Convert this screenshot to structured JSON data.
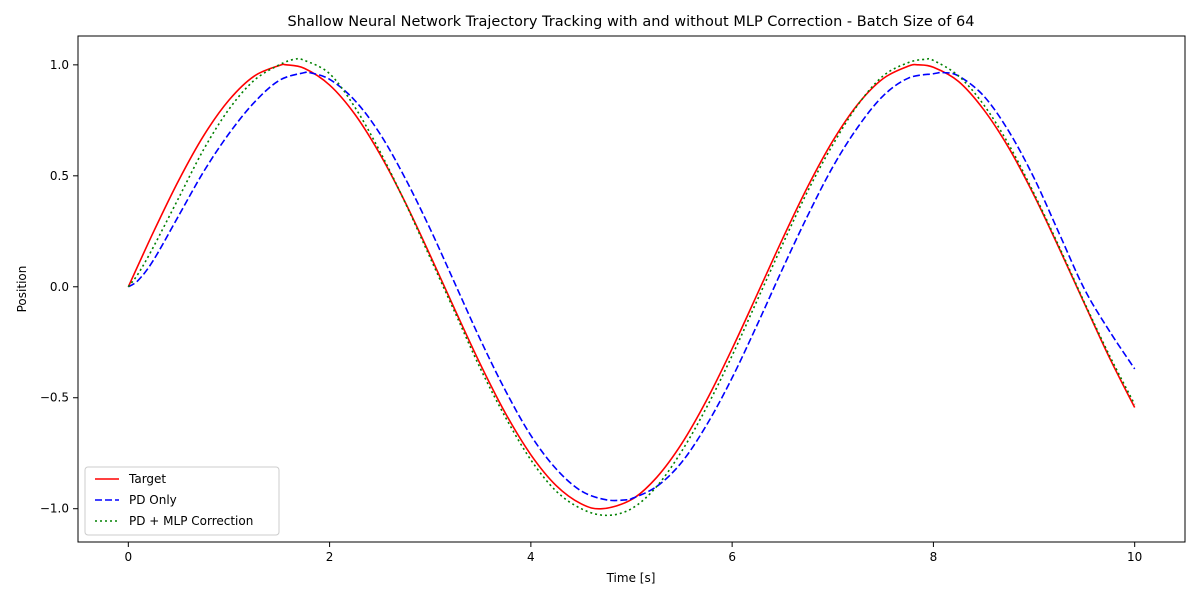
{
  "chart_data": {
    "type": "line",
    "title": "Shallow Neural Network Trajectory Tracking with and without MLP Correction - Batch Size of 64",
    "xlabel": "Time [s]",
    "ylabel": "Position",
    "xlim": [
      -0.5,
      10.5
    ],
    "ylim": [
      -1.15,
      1.13
    ],
    "xticks": [
      0,
      2,
      4,
      6,
      8,
      10
    ],
    "xtick_labels": [
      "0",
      "2",
      "4",
      "6",
      "8",
      "10"
    ],
    "yticks": [
      -1.0,
      -0.5,
      0.0,
      0.5,
      1.0
    ],
    "ytick_labels": [
      "−1.0",
      "−0.5",
      "0.0",
      "0.5",
      "1.0"
    ],
    "grid": false,
    "legend_position": "lower-left",
    "series": [
      {
        "name": "Target",
        "color": "#ff0000",
        "style": "solid",
        "x": [
          0,
          0.25,
          0.5,
          0.75,
          1.0,
          1.25,
          1.5,
          1.57,
          1.75,
          2.0,
          2.25,
          2.5,
          2.75,
          3.0,
          3.25,
          3.5,
          3.75,
          4.0,
          4.25,
          4.5,
          4.71,
          5.0,
          5.25,
          5.5,
          5.75,
          6.0,
          6.25,
          6.5,
          6.75,
          7.0,
          7.25,
          7.5,
          7.75,
          7.85,
          8.0,
          8.25,
          8.5,
          8.75,
          9.0,
          9.25,
          9.5,
          9.75,
          10.0
        ],
        "y": [
          0.0,
          0.247,
          0.479,
          0.682,
          0.841,
          0.949,
          0.997,
          1.0,
          0.984,
          0.909,
          0.778,
          0.598,
          0.382,
          0.141,
          -0.108,
          -0.351,
          -0.572,
          -0.757,
          -0.895,
          -0.978,
          -1.0,
          -0.959,
          -0.859,
          -0.706,
          -0.508,
          -0.279,
          -0.033,
          0.215,
          0.45,
          0.657,
          0.823,
          0.938,
          0.994,
          1.0,
          0.989,
          0.925,
          0.798,
          0.625,
          0.412,
          0.173,
          -0.075,
          -0.32,
          -0.544
        ]
      },
      {
        "name": "PD Only",
        "color": "#0000ff",
        "style": "dashed",
        "x": [
          0,
          0.1,
          0.25,
          0.5,
          0.75,
          1.0,
          1.25,
          1.5,
          1.75,
          1.8,
          2.0,
          2.25,
          2.5,
          2.75,
          3.0,
          3.25,
          3.5,
          3.75,
          4.0,
          4.25,
          4.5,
          4.75,
          4.95,
          5.0,
          5.25,
          5.5,
          5.75,
          6.0,
          6.25,
          6.5,
          6.75,
          7.0,
          7.25,
          7.5,
          7.75,
          8.0,
          8.1,
          8.25,
          8.5,
          8.75,
          9.0,
          9.25,
          9.5,
          9.75,
          10.0
        ],
        "y": [
          0.0,
          0.03,
          0.12,
          0.32,
          0.52,
          0.69,
          0.83,
          0.93,
          0.965,
          0.965,
          0.935,
          0.84,
          0.69,
          0.49,
          0.26,
          0.01,
          -0.24,
          -0.47,
          -0.67,
          -0.82,
          -0.92,
          -0.96,
          -0.96,
          -0.955,
          -0.9,
          -0.79,
          -0.62,
          -0.41,
          -0.17,
          0.08,
          0.32,
          0.54,
          0.72,
          0.86,
          0.94,
          0.96,
          0.965,
          0.95,
          0.86,
          0.7,
          0.49,
          0.24,
          -0.01,
          -0.2,
          -0.37
        ]
      },
      {
        "name": "PD + MLP Correction",
        "color": "#008000",
        "style": "dotted",
        "x": [
          0,
          0.1,
          0.25,
          0.5,
          0.75,
          1.0,
          1.25,
          1.5,
          1.65,
          1.75,
          2.0,
          2.25,
          2.5,
          2.75,
          3.0,
          3.25,
          3.5,
          3.75,
          4.0,
          4.25,
          4.5,
          4.75,
          5.0,
          5.25,
          5.5,
          5.75,
          6.0,
          6.25,
          6.5,
          6.75,
          7.0,
          7.25,
          7.5,
          7.75,
          7.92,
          8.0,
          8.25,
          8.5,
          8.75,
          9.0,
          9.25,
          9.5,
          9.75,
          10.0
        ],
        "y": [
          0.0,
          0.06,
          0.18,
          0.4,
          0.62,
          0.8,
          0.93,
          1.0,
          1.025,
          1.02,
          0.96,
          0.81,
          0.61,
          0.38,
          0.13,
          -0.12,
          -0.37,
          -0.59,
          -0.78,
          -0.92,
          -1.0,
          -1.03,
          -1.0,
          -0.9,
          -0.74,
          -0.54,
          -0.31,
          -0.06,
          0.19,
          0.43,
          0.64,
          0.82,
          0.95,
          1.01,
          1.025,
          1.02,
          0.95,
          0.82,
          0.64,
          0.42,
          0.18,
          -0.07,
          -0.31,
          -0.53
        ]
      }
    ]
  }
}
